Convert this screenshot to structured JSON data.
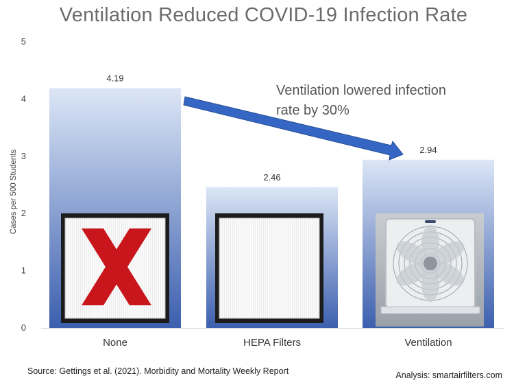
{
  "chart_data": {
    "type": "bar",
    "title": "Ventilation Reduced COVID-19 Infection Rate",
    "xlabel": "",
    "ylabel": "Cases per 500 Students",
    "ylim": [
      0,
      5
    ],
    "yticks": [
      "0",
      "1",
      "2",
      "3",
      "4",
      "5"
    ],
    "grid": false,
    "categories": [
      "None",
      "HEPA Filters",
      "Ventilation"
    ],
    "values": [
      4.19,
      2.46,
      2.94
    ],
    "data_labels": [
      "4.19",
      "2.46",
      "2.94"
    ],
    "bar_gradient": {
      "top": "#dce6f6",
      "bottom": "#3c5fae"
    },
    "annotation": {
      "lines": [
        "Ventilation lowered infection",
        "rate by 30%"
      ],
      "arrow_from": "None",
      "arrow_to": "Ventilation",
      "arrow_color": "#3566c4"
    },
    "bar_images": [
      "red-x-filter-icon",
      "hepa-filter-icon",
      "box-fan-icon"
    ]
  },
  "footer": {
    "source": "Source: Gettings et al. (2021). Morbidity and Mortality Weekly Report",
    "analysis": "Analysis: smartairfilters.com"
  }
}
